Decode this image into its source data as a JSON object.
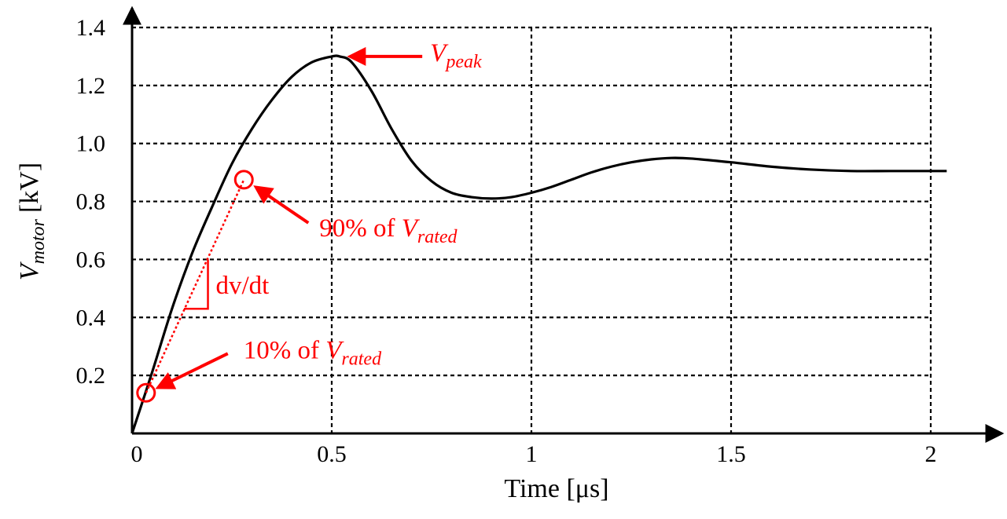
{
  "chart_data": {
    "type": "line",
    "xlabel": "Time [μs]",
    "ylabel_main": "V",
    "ylabel_sub": "motor",
    "ylabel_unit": "[kV]",
    "xlim": [
      0,
      2.0
    ],
    "ylim": [
      0,
      1.4
    ],
    "x_ticks": [
      {
        "value": 0,
        "label": "0"
      },
      {
        "value": 0.5,
        "label": "0.5"
      },
      {
        "value": 1.0,
        "label": "1"
      },
      {
        "value": 1.5,
        "label": "1.5"
      },
      {
        "value": 2.0,
        "label": "2"
      }
    ],
    "y_ticks": [
      {
        "value": 0.2,
        "label": "0.2"
      },
      {
        "value": 0.4,
        "label": "0.4"
      },
      {
        "value": 0.6,
        "label": "0.6"
      },
      {
        "value": 0.8,
        "label": "0.8"
      },
      {
        "value": 1.0,
        "label": "1.0"
      },
      {
        "value": 1.2,
        "label": "1.2"
      },
      {
        "value": 1.4,
        "label": "1.4"
      }
    ],
    "grid": true,
    "series": [
      {
        "x": [
          0,
          0.05,
          0.1,
          0.15,
          0.2,
          0.25,
          0.3,
          0.35,
          0.4,
          0.45,
          0.5,
          0.52,
          0.55,
          0.6,
          0.65,
          0.7,
          0.75,
          0.8,
          0.85,
          0.9,
          0.95,
          1.0,
          1.05,
          1.1,
          1.15,
          1.2,
          1.25,
          1.3,
          1.35,
          1.4,
          1.5,
          1.6,
          1.7,
          1.8,
          1.9,
          2.0,
          2.04
        ],
        "y": [
          0,
          0.21,
          0.43,
          0.62,
          0.78,
          0.93,
          1.05,
          1.15,
          1.23,
          1.28,
          1.3,
          1.3,
          1.28,
          1.18,
          1.05,
          0.94,
          0.87,
          0.83,
          0.815,
          0.81,
          0.815,
          0.83,
          0.85,
          0.875,
          0.9,
          0.92,
          0.935,
          0.945,
          0.95,
          0.948,
          0.935,
          0.92,
          0.91,
          0.905,
          0.905,
          0.905,
          0.905
        ]
      }
    ],
    "annotations": {
      "peak": {
        "x": 0.52,
        "y": 1.3,
        "label_main": "V",
        "label_sub": "peak"
      },
      "p90": {
        "x": 0.28,
        "y": 0.875,
        "label_prefix": "90% of ",
        "label_main": "V",
        "label_sub": "rated"
      },
      "p10": {
        "x": 0.035,
        "y": 0.14,
        "label_prefix": "10% of ",
        "label_main": "V",
        "label_sub": "rated"
      },
      "slope": {
        "label": "dv/dt",
        "x_from": 0.13,
        "x_to": 0.19,
        "y_from": 0.43,
        "y_to": 0.6
      }
    },
    "colors": {
      "curve": "#000000",
      "annotation": "#ff0000"
    }
  }
}
